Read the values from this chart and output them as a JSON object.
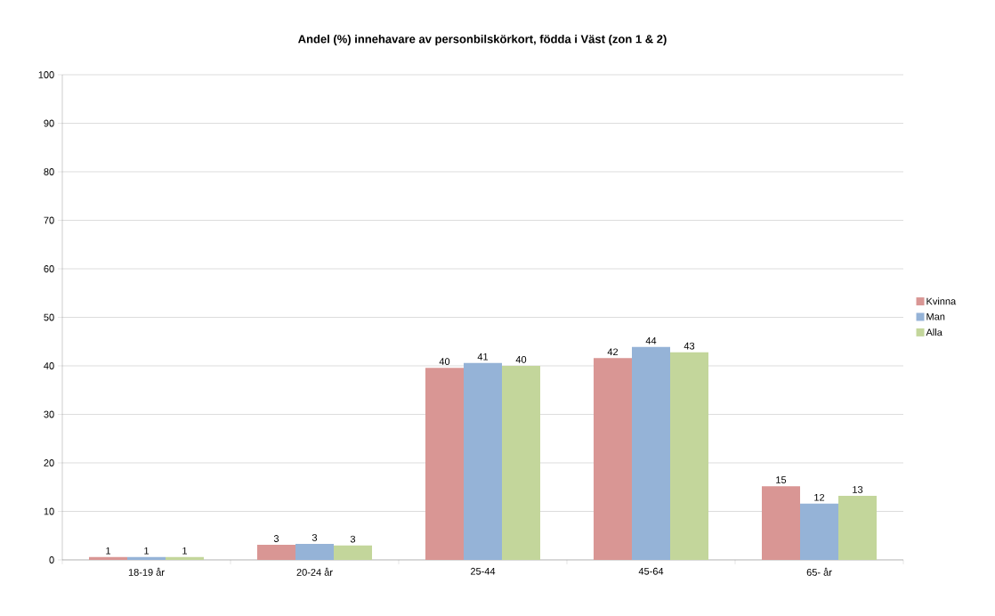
{
  "chart_data": {
    "type": "bar",
    "title": "Andel (%) innehavare av personbilskörkort, födda i Väst (zon 1 & 2)",
    "categories": [
      "18-19 år",
      "20-24 år",
      "25-44",
      "45-64",
      "65- år"
    ],
    "series": [
      {
        "name": "Kvinna",
        "color": "#d99694",
        "values": [
          0.6,
          3.1,
          39.6,
          41.6,
          15.2
        ],
        "value_labels": [
          "1",
          "3",
          "40",
          "42",
          "15"
        ]
      },
      {
        "name": "Man",
        "color": "#95b3d7",
        "values": [
          0.6,
          3.3,
          40.6,
          43.9,
          11.6
        ],
        "value_labels": [
          "1",
          "3",
          "41",
          "44",
          "12"
        ]
      },
      {
        "name": "Alla",
        "color": "#c3d69b",
        "values": [
          0.6,
          3.0,
          40.0,
          42.8,
          13.2
        ],
        "value_labels": [
          "1",
          "3",
          "40",
          "43",
          "13"
        ]
      }
    ],
    "ylim": [
      0,
      100
    ],
    "yticks": [
      0,
      10,
      20,
      30,
      40,
      50,
      60,
      70,
      80,
      90,
      100
    ],
    "grid": "y",
    "legend": "right"
  }
}
